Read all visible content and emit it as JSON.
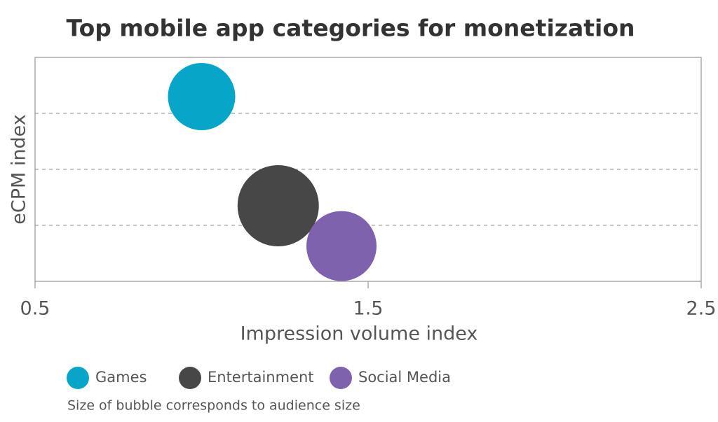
{
  "chart_data": {
    "type": "scatter",
    "title": "Top mobile app categories for monetization",
    "x_label": "Impression volume index",
    "y_label": "eCPM index",
    "xlim": [
      0.5,
      2.5
    ],
    "xticks": [
      0.5,
      1.5,
      2.5
    ],
    "ylim": [
      0,
      4
    ],
    "y_gridlines": [
      1,
      2,
      3
    ],
    "series": [
      {
        "name": "Games",
        "color": "#07a6c9",
        "x": [
          1.0
        ],
        "values": [
          3.3
        ],
        "sizes": [
          48
        ]
      },
      {
        "name": "Entertainment",
        "color": "#474747",
        "x": [
          1.23
        ],
        "values": [
          1.35
        ],
        "sizes": [
          58
        ]
      },
      {
        "name": "Social Media",
        "color": "#7f62ad",
        "x": [
          1.42
        ],
        "values": [
          0.63
        ],
        "sizes": [
          50
        ]
      }
    ],
    "note": "Size of bubble corresponds to audience size"
  }
}
